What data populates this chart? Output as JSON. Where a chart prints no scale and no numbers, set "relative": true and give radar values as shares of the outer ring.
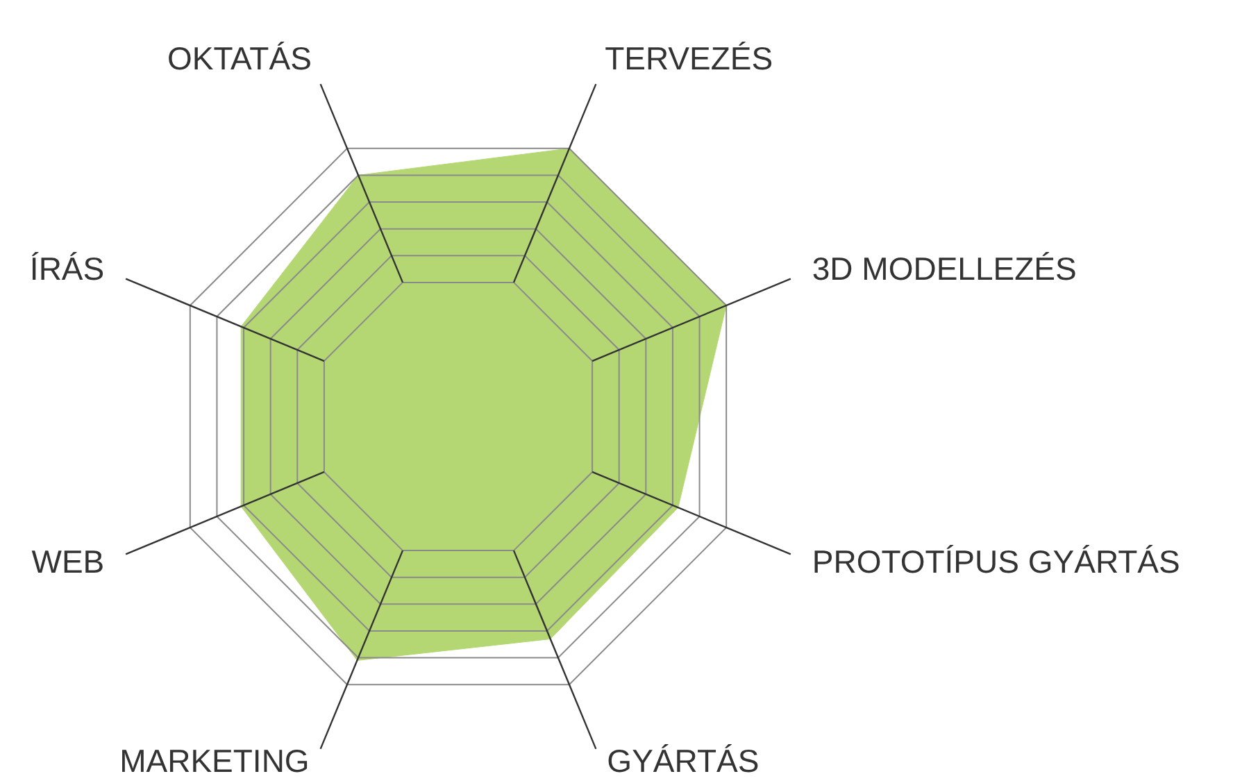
{
  "chart_data": {
    "type": "radar",
    "relative": true,
    "grid": true,
    "categories": [
      "TERVEZÉS",
      "3D MODELLEZÉS",
      "PROTOTÍPUS GYÁRTÁS",
      "GYÁRTÁS",
      "MARKETING",
      "WEB",
      "ÍRÁS",
      "OKTATÁS"
    ],
    "series": [
      {
        "color": "#b5d773",
        "values": [
          1.0,
          1.0,
          0.82,
          0.83,
          0.91,
          0.81,
          0.81,
          0.9
        ]
      }
    ]
  }
}
